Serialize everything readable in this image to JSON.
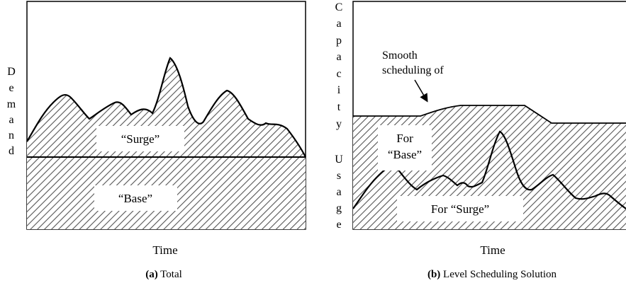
{
  "panel_a": {
    "y_label_letters": [
      "D",
      "e",
      "m",
      "a",
      "n",
      "d"
    ],
    "region_surge": "“Surge”",
    "region_base": "“Base”",
    "x_label": "Time",
    "caption_bold": "(a)",
    "caption_text": " Total"
  },
  "panel_b": {
    "y_label_letters_top": [
      "C",
      "a",
      "p",
      "a",
      "c",
      "i",
      "t",
      "y"
    ],
    "y_label_letters_bottom": [
      "U",
      "s",
      "a",
      "g",
      "e"
    ],
    "annotation_line1": "Smooth",
    "annotation_line2": "scheduling of",
    "region_base_line1": "For",
    "region_base_line2": "“Base”",
    "region_surge": "For “Surge”",
    "x_label": "Time",
    "caption_bold": "(b)",
    "caption_text": " Level Scheduling Solution"
  }
}
